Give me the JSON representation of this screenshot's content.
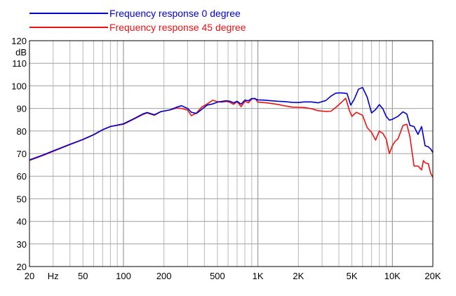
{
  "chart_data": {
    "type": "line",
    "xscale": "log",
    "xlim": [
      20,
      20000
    ],
    "ylim": [
      20,
      120
    ],
    "ylabel": "dB",
    "grid": true,
    "legend_position": "top-left",
    "x_tick_labels": [
      {
        "value": 20,
        "label": "20"
      },
      {
        "value": 30,
        "label": "Hz"
      },
      {
        "value": 50,
        "label": "50"
      },
      {
        "value": 100,
        "label": "100"
      },
      {
        "value": 200,
        "label": "200"
      },
      {
        "value": 500,
        "label": "500"
      },
      {
        "value": 1000,
        "label": "1K"
      },
      {
        "value": 2000,
        "label": "2K"
      },
      {
        "value": 5000,
        "label": "5K"
      },
      {
        "value": 10000,
        "label": "10K"
      },
      {
        "value": 20000,
        "label": "20K"
      }
    ],
    "y_tick_labels": [
      "20",
      "30",
      "40",
      "50",
      "60",
      "70",
      "80",
      "90",
      "100",
      "110",
      "120"
    ],
    "series": [
      {
        "name": "Frequency response 0 degree",
        "color": "#0000cc",
        "points": [
          [
            20,
            67.2
          ],
          [
            25,
            69.3
          ],
          [
            30,
            71.2
          ],
          [
            40,
            74.1
          ],
          [
            50,
            76.3
          ],
          [
            60,
            78.4
          ],
          [
            70,
            80.6
          ],
          [
            80,
            82
          ],
          [
            100,
            83.2
          ],
          [
            120,
            85.5
          ],
          [
            140,
            87.6
          ],
          [
            150,
            88.2
          ],
          [
            170,
            87.2
          ],
          [
            190,
            88.6
          ],
          [
            220,
            89.3
          ],
          [
            250,
            90.6
          ],
          [
            270,
            91.2
          ],
          [
            300,
            90
          ],
          [
            320,
            88.3
          ],
          [
            350,
            87.8
          ],
          [
            380,
            89.5
          ],
          [
            420,
            91.5
          ],
          [
            460,
            92
          ],
          [
            500,
            92.8
          ],
          [
            540,
            93.1
          ],
          [
            580,
            93.4
          ],
          [
            620,
            93.2
          ],
          [
            660,
            92.5
          ],
          [
            700,
            93.2
          ],
          [
            750,
            91.9
          ],
          [
            800,
            93.7
          ],
          [
            850,
            93.4
          ],
          [
            900,
            94.4
          ],
          [
            950,
            94.3
          ],
          [
            1000,
            93.8
          ],
          [
            1100,
            93.7
          ],
          [
            1200,
            93.5
          ],
          [
            1400,
            93.2
          ],
          [
            1600,
            93
          ],
          [
            1800,
            92.7
          ],
          [
            2000,
            92.6
          ],
          [
            2200,
            92.9
          ],
          [
            2500,
            92.9
          ],
          [
            2800,
            92.5
          ],
          [
            3200,
            93.5
          ],
          [
            3500,
            95.5
          ],
          [
            3800,
            96.8
          ],
          [
            4200,
            96.9
          ],
          [
            4600,
            96.6
          ],
          [
            4900,
            91.5
          ],
          [
            5200,
            94
          ],
          [
            5600,
            98.5
          ],
          [
            6000,
            99.3
          ],
          [
            6500,
            95
          ],
          [
            7000,
            88
          ],
          [
            7500,
            89.5
          ],
          [
            8000,
            91.7
          ],
          [
            8500,
            89.8
          ],
          [
            9000,
            86.5
          ],
          [
            9500,
            84.8
          ],
          [
            10000,
            85.2
          ],
          [
            11000,
            86.5
          ],
          [
            12000,
            88.5
          ],
          [
            12800,
            87.5
          ],
          [
            13500,
            82.5
          ],
          [
            14500,
            82
          ],
          [
            15500,
            78.5
          ],
          [
            16500,
            82
          ],
          [
            17500,
            73.5
          ],
          [
            18500,
            73
          ],
          [
            19300,
            72
          ],
          [
            20000,
            70.5
          ]
        ]
      },
      {
        "name": "Frequency response 45 degree",
        "color": "#ee1111",
        "points": [
          [
            20,
            67
          ],
          [
            25,
            69.1
          ],
          [
            30,
            71
          ],
          [
            40,
            74
          ],
          [
            50,
            76.2
          ],
          [
            60,
            78.3
          ],
          [
            70,
            80.5
          ],
          [
            80,
            82
          ],
          [
            100,
            83
          ],
          [
            120,
            85.3
          ],
          [
            140,
            87.4
          ],
          [
            150,
            88
          ],
          [
            170,
            87
          ],
          [
            190,
            88.6
          ],
          [
            220,
            89.3
          ],
          [
            250,
            90.2
          ],
          [
            270,
            90
          ],
          [
            300,
            89.3
          ],
          [
            320,
            86.8
          ],
          [
            350,
            88
          ],
          [
            380,
            90.5
          ],
          [
            420,
            92
          ],
          [
            460,
            93.6
          ],
          [
            500,
            93
          ],
          [
            540,
            92.8
          ],
          [
            580,
            93.1
          ],
          [
            620,
            92.7
          ],
          [
            660,
            91.8
          ],
          [
            700,
            93
          ],
          [
            750,
            90.8
          ],
          [
            800,
            93.2
          ],
          [
            850,
            92.5
          ],
          [
            900,
            94.2
          ],
          [
            950,
            94.5
          ],
          [
            1000,
            92.8
          ],
          [
            1100,
            92.6
          ],
          [
            1200,
            92.4
          ],
          [
            1400,
            91.8
          ],
          [
            1600,
            91.1
          ],
          [
            1800,
            90.6
          ],
          [
            2000,
            90.5
          ],
          [
            2200,
            90.4
          ],
          [
            2500,
            89.9
          ],
          [
            2800,
            89
          ],
          [
            3200,
            88.7
          ],
          [
            3500,
            88.8
          ],
          [
            3800,
            90.5
          ],
          [
            4200,
            92.8
          ],
          [
            4500,
            94.5
          ],
          [
            4800,
            89
          ],
          [
            5000,
            86.5
          ],
          [
            5400,
            88.3
          ],
          [
            6000,
            87
          ],
          [
            6500,
            81.5
          ],
          [
            7000,
            79.4
          ],
          [
            7500,
            76
          ],
          [
            8000,
            80
          ],
          [
            8500,
            78.9
          ],
          [
            9000,
            76.5
          ],
          [
            9500,
            70
          ],
          [
            10000,
            73.5
          ],
          [
            10500,
            75.5
          ],
          [
            11000,
            76.5
          ],
          [
            12000,
            82.5
          ],
          [
            12800,
            83
          ],
          [
            13500,
            77.5
          ],
          [
            14500,
            64.5
          ],
          [
            15500,
            64.5
          ],
          [
            16500,
            62.8
          ],
          [
            17000,
            66.9
          ],
          [
            17500,
            66
          ],
          [
            18500,
            65.5
          ],
          [
            19300,
            61.2
          ],
          [
            20000,
            59.5
          ]
        ]
      }
    ]
  }
}
